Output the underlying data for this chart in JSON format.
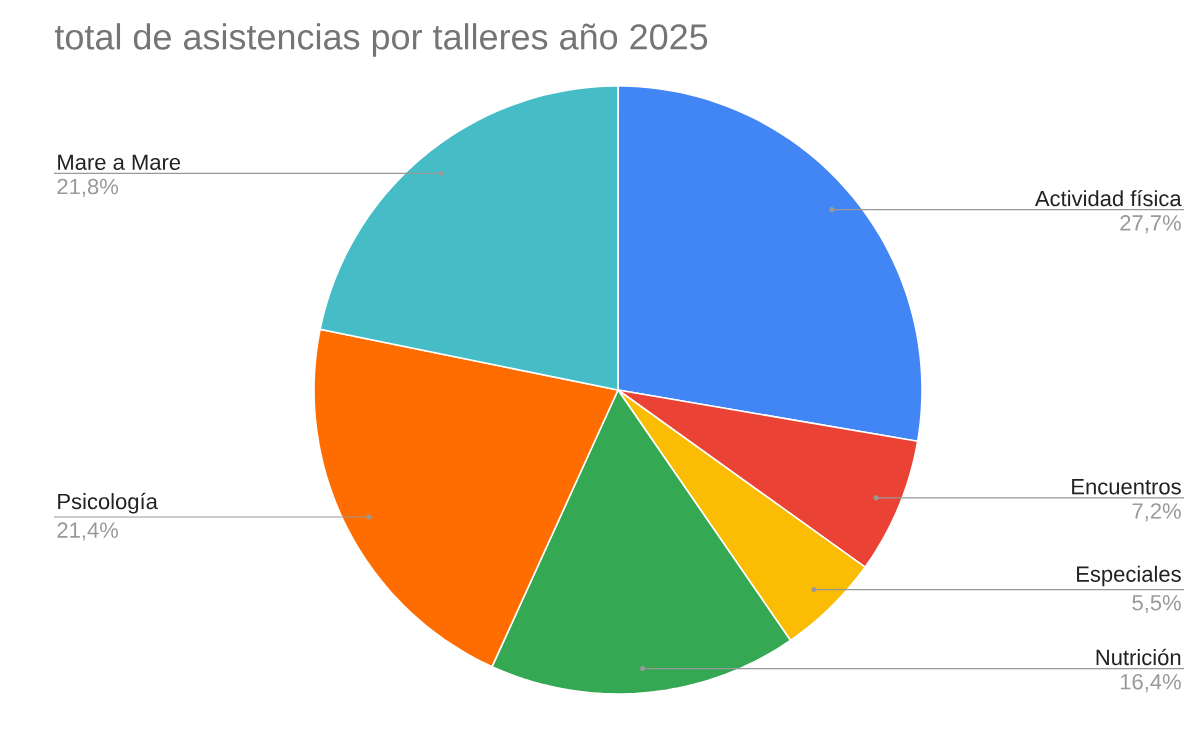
{
  "chart_data": {
    "type": "pie",
    "title": "total de asistencias por talleres año 2025",
    "categories": [
      "Actividad física",
      "Encuentros",
      "Especiales",
      "Nutrición",
      "Psicología",
      "Mare a Mare"
    ],
    "values": [
      27.7,
      7.2,
      5.5,
      16.4,
      21.4,
      21.8
    ],
    "value_labels": [
      "27,7%",
      "7,2%",
      "5,5%",
      "16,4%",
      "21,4%",
      "21,8%"
    ],
    "colors": [
      "#4285f4",
      "#ea4335",
      "#fbbc04",
      "#34a853",
      "#ff6d01",
      "#46bdc6"
    ]
  }
}
